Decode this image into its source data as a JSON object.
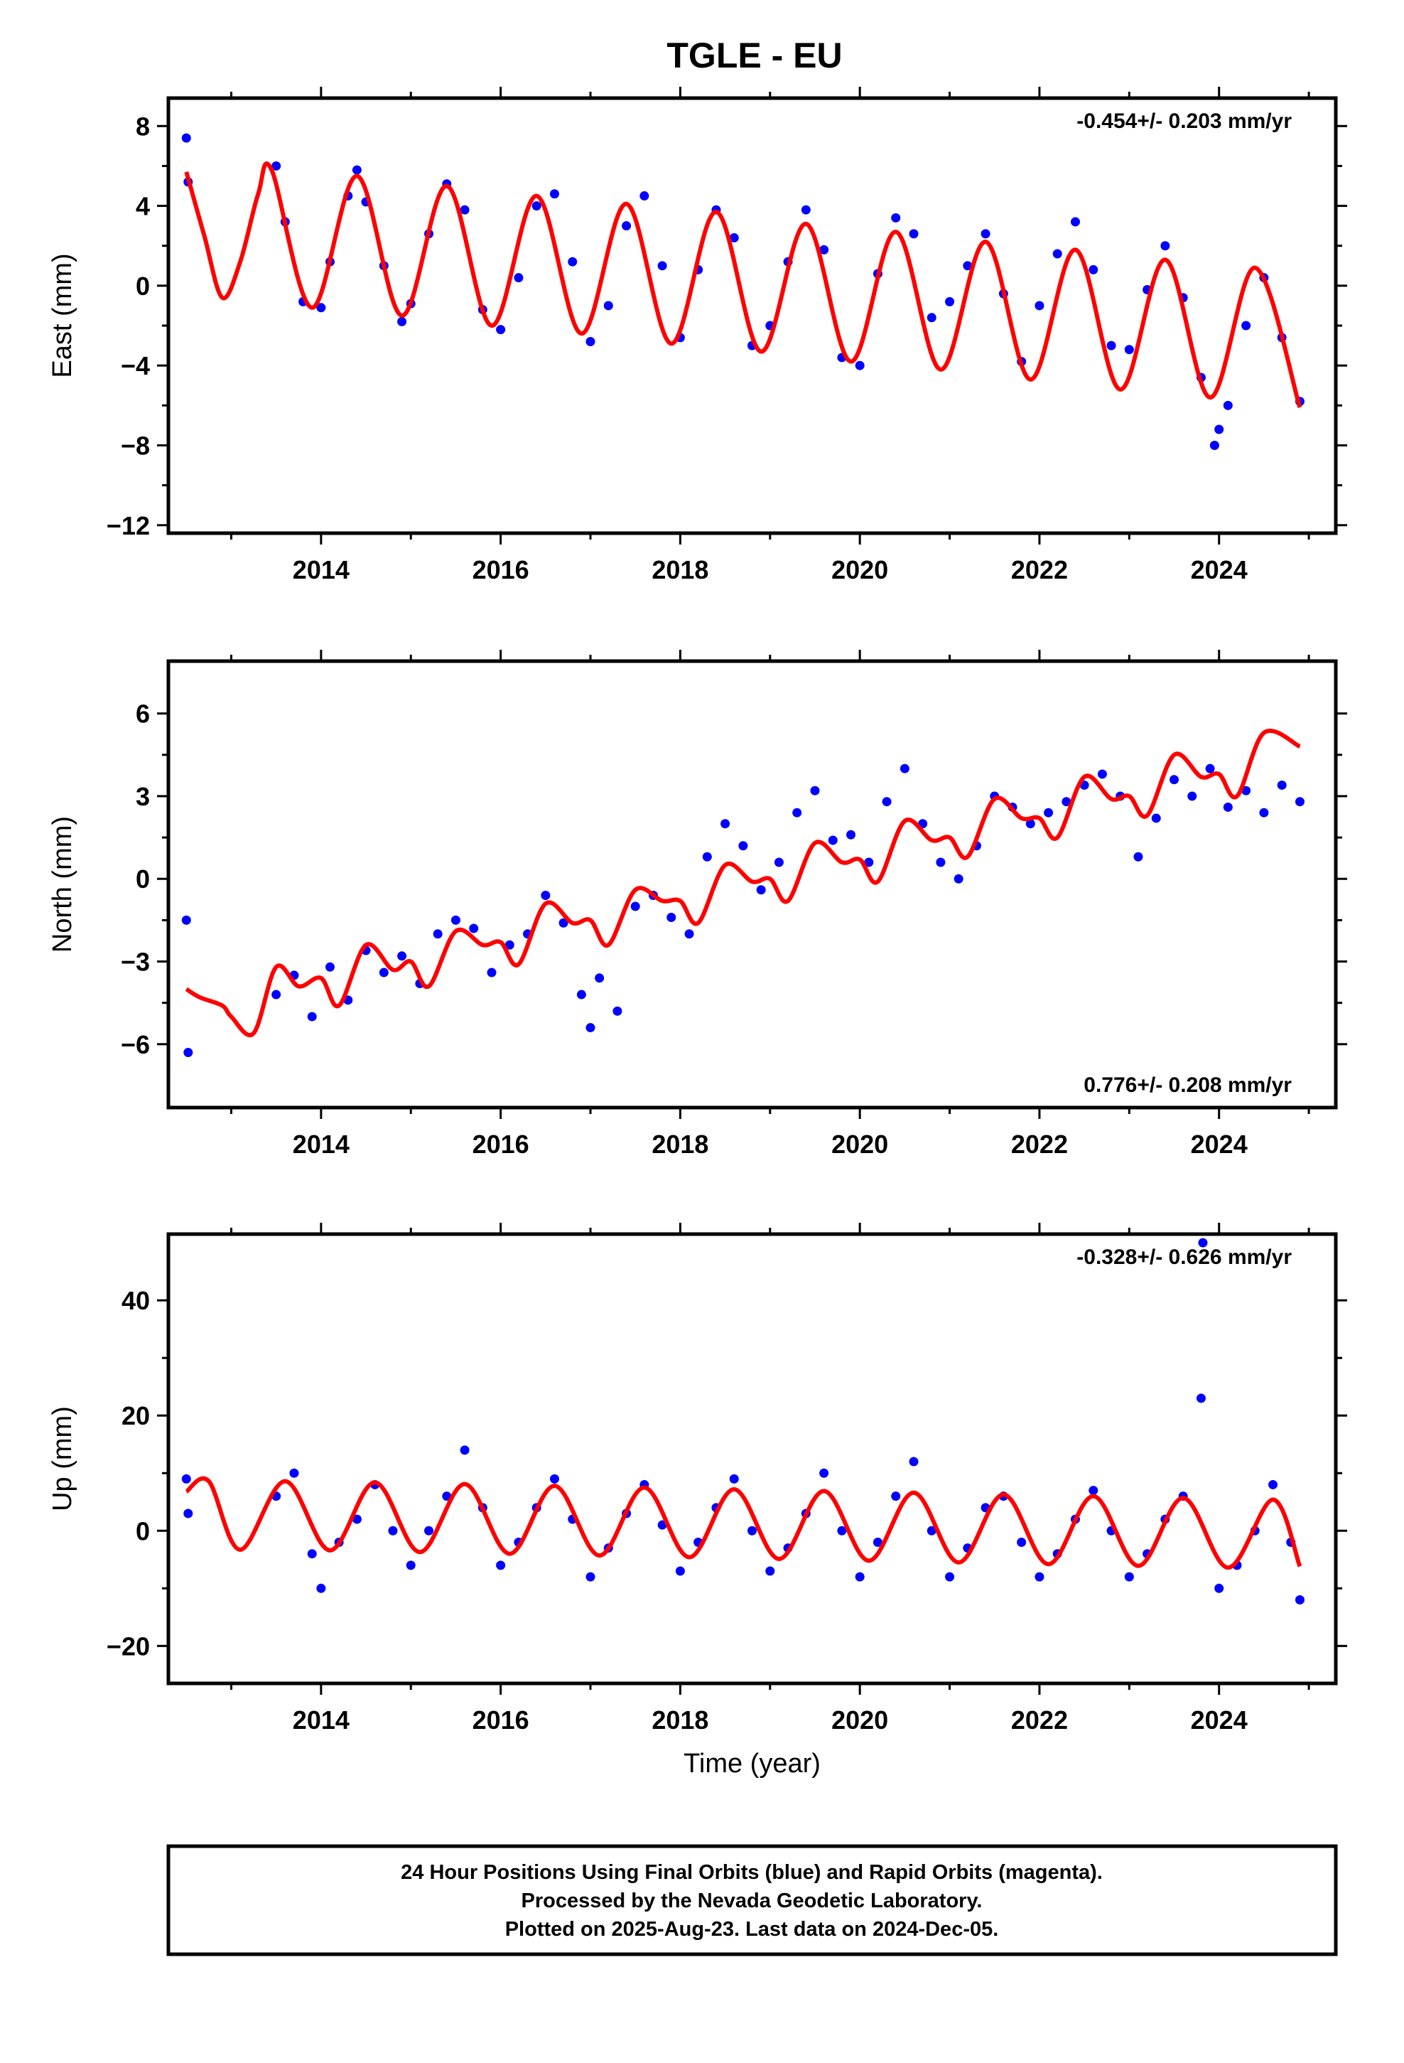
{
  "page_title": "TGLE - EU",
  "colors": {
    "points": "#0000ff",
    "fit": "#ff0000",
    "frame": "#000000",
    "background": "#ffffff"
  },
  "footer": {
    "line1": "24 Hour Positions Using Final Orbits (blue) and Rapid Orbits (magenta).",
    "line2": "Processed by the Nevada Geodetic Laboratory.",
    "line3": "Plotted on 2025-Aug-23. Last data on 2024-Dec-05."
  },
  "chart_data": [
    {
      "type": "scatter",
      "component": "east",
      "title": "",
      "xlabel": "",
      "ylabel": "East (mm)",
      "rate_label": "-0.454+/- 0.203 mm/yr",
      "rate_position": "top-right",
      "xlim": [
        2012.3,
        2025.3
      ],
      "ylim": [
        -12.4,
        9.4
      ],
      "x_ticks": [
        2014,
        2016,
        2018,
        2020,
        2022,
        2024
      ],
      "x_tick_labels": [
        "2014",
        "2016",
        "2018",
        "2020",
        "2022",
        "2024"
      ],
      "y_ticks": [
        -12,
        -8,
        -4,
        0,
        4,
        8
      ],
      "y_tick_labels": [
        "−12",
        "−8",
        "−4",
        "0",
        "4",
        "8"
      ],
      "grid": false,
      "series": [
        {
          "kind": "points",
          "x": [
            2012.5,
            2012.52,
            2013.5,
            2013.6,
            2013.8,
            2014.0,
            2014.1,
            2014.3,
            2014.4,
            2014.5,
            2014.7,
            2014.9,
            2015.0,
            2015.2,
            2015.4,
            2015.6,
            2015.8,
            2016.0,
            2016.2,
            2016.4,
            2016.6,
            2016.8,
            2017.0,
            2017.2,
            2017.4,
            2017.6,
            2017.8,
            2018.0,
            2018.2,
            2018.4,
            2018.6,
            2018.8,
            2019.0,
            2019.2,
            2019.4,
            2019.6,
            2019.8,
            2020.0,
            2020.2,
            2020.4,
            2020.6,
            2020.8,
            2021.0,
            2021.2,
            2021.4,
            2021.6,
            2021.8,
            2022.0,
            2022.2,
            2022.4,
            2022.6,
            2022.8,
            2023.0,
            2023.2,
            2023.4,
            2023.6,
            2023.8,
            2023.95,
            2024.0,
            2024.1,
            2024.3,
            2024.5,
            2024.7,
            2024.9
          ],
          "y": [
            7.4,
            5.2,
            6.0,
            3.2,
            -0.8,
            -1.1,
            1.2,
            4.5,
            5.8,
            4.2,
            1.0,
            -1.8,
            -0.9,
            2.6,
            5.1,
            3.8,
            -1.2,
            -2.2,
            0.4,
            4.0,
            4.6,
            1.2,
            -2.8,
            -1.0,
            3.0,
            4.5,
            1.0,
            -2.6,
            0.8,
            3.8,
            2.4,
            -3.0,
            -2.0,
            1.2,
            3.8,
            1.8,
            -3.6,
            -4.0,
            0.6,
            3.4,
            2.6,
            -1.6,
            -0.8,
            1.0,
            2.6,
            -0.4,
            -3.8,
            -1.0,
            1.6,
            3.2,
            0.8,
            -3.0,
            -3.2,
            -0.2,
            2.0,
            -0.6,
            -4.6,
            -8.0,
            -7.2,
            -6.0,
            -2.0,
            0.4,
            -2.6,
            -5.8
          ]
        },
        {
          "kind": "fit",
          "x": [
            2012.5,
            2012.7,
            2012.9,
            2013.1,
            2013.3,
            2013.45,
            2013.9,
            2014.4,
            2014.9,
            2015.4,
            2015.9,
            2016.4,
            2016.9,
            2017.4,
            2017.9,
            2018.4,
            2018.9,
            2019.4,
            2019.9,
            2020.4,
            2020.9,
            2021.4,
            2021.9,
            2022.4,
            2022.9,
            2023.4,
            2023.9,
            2024.4,
            2024.9
          ],
          "y": [
            5.7,
            2.5,
            -0.6,
            1.2,
            4.6,
            5.8,
            -1.1,
            5.5,
            -1.5,
            5.0,
            -2.0,
            4.5,
            -2.4,
            4.1,
            -2.9,
            3.7,
            -3.3,
            3.1,
            -3.8,
            2.7,
            -4.2,
            2.2,
            -4.7,
            1.8,
            -5.2,
            1.3,
            -5.6,
            0.9,
            -6.1
          ]
        }
      ]
    },
    {
      "type": "scatter",
      "component": "north",
      "title": "",
      "xlabel": "",
      "ylabel": "North (mm)",
      "rate_label": "0.776+/- 0.208 mm/yr",
      "rate_position": "bottom-right",
      "xlim": [
        2012.3,
        2025.3
      ],
      "ylim": [
        -8.3,
        7.9
      ],
      "x_ticks": [
        2014,
        2016,
        2018,
        2020,
        2022,
        2024
      ],
      "x_tick_labels": [
        "2014",
        "2016",
        "2018",
        "2020",
        "2022",
        "2024"
      ],
      "y_ticks": [
        -6,
        -3,
        0,
        3,
        6
      ],
      "y_tick_labels": [
        "−6",
        "−3",
        "0",
        "3",
        "6"
      ],
      "grid": false,
      "series": [
        {
          "kind": "points",
          "x": [
            2012.5,
            2012.52,
            2013.5,
            2013.7,
            2013.9,
            2014.1,
            2014.3,
            2014.5,
            2014.7,
            2014.9,
            2015.1,
            2015.3,
            2015.5,
            2015.7,
            2015.9,
            2016.1,
            2016.3,
            2016.5,
            2016.7,
            2016.9,
            2017.0,
            2017.1,
            2017.3,
            2017.5,
            2017.7,
            2017.9,
            2018.1,
            2018.3,
            2018.5,
            2018.7,
            2018.9,
            2019.1,
            2019.3,
            2019.5,
            2019.7,
            2019.9,
            2020.1,
            2020.3,
            2020.5,
            2020.7,
            2020.9,
            2021.1,
            2021.3,
            2021.5,
            2021.7,
            2021.9,
            2022.1,
            2022.3,
            2022.5,
            2022.7,
            2022.9,
            2023.1,
            2023.3,
            2023.5,
            2023.7,
            2023.9,
            2024.1,
            2024.3,
            2024.5,
            2024.7,
            2024.9
          ],
          "y": [
            -1.5,
            -6.3,
            -4.2,
            -3.5,
            -5.0,
            -3.2,
            -4.4,
            -2.6,
            -3.4,
            -2.8,
            -3.8,
            -2.0,
            -1.5,
            -1.8,
            -3.4,
            -2.4,
            -2.0,
            -0.6,
            -1.6,
            -4.2,
            -5.4,
            -3.6,
            -4.8,
            -1.0,
            -0.6,
            -1.4,
            -2.0,
            0.8,
            2.0,
            1.2,
            -0.4,
            0.6,
            2.4,
            3.2,
            1.4,
            1.6,
            0.6,
            2.8,
            4.0,
            2.0,
            0.6,
            0.0,
            1.2,
            3.0,
            2.6,
            2.0,
            2.4,
            2.8,
            3.4,
            3.8,
            3.0,
            0.8,
            2.2,
            3.6,
            3.0,
            4.0,
            2.6,
            3.2,
            2.4,
            3.4,
            2.8
          ]
        },
        {
          "kind": "fit",
          "x": [
            2012.5,
            2012.65,
            2012.9,
            2013.0,
            2013.25,
            2013.5,
            2013.75,
            2014.0,
            2014.2,
            2014.5,
            2014.8,
            2015.0,
            2015.2,
            2015.5,
            2015.8,
            2016.0,
            2016.2,
            2016.5,
            2016.8,
            2017.0,
            2017.2,
            2017.5,
            2017.8,
            2018.0,
            2018.2,
            2018.5,
            2018.8,
            2019.0,
            2019.2,
            2019.5,
            2019.8,
            2020.0,
            2020.2,
            2020.5,
            2020.8,
            2021.0,
            2021.2,
            2021.5,
            2021.8,
            2022.0,
            2022.2,
            2022.5,
            2022.8,
            2023.0,
            2023.2,
            2023.5,
            2023.8,
            2024.0,
            2024.2,
            2024.5,
            2024.9
          ],
          "y": [
            -4.0,
            -4.3,
            -4.6,
            -5.0,
            -5.6,
            -3.2,
            -3.9,
            -3.6,
            -4.6,
            -2.4,
            -3.3,
            -3.0,
            -3.9,
            -1.9,
            -2.4,
            -2.3,
            -3.1,
            -0.9,
            -1.6,
            -1.5,
            -2.4,
            -0.4,
            -0.8,
            -0.8,
            -1.6,
            0.5,
            -0.1,
            0.0,
            -0.8,
            1.3,
            0.6,
            0.7,
            -0.1,
            2.1,
            1.4,
            1.5,
            0.8,
            2.9,
            2.2,
            2.2,
            1.5,
            3.7,
            2.9,
            3.0,
            2.3,
            4.5,
            3.7,
            3.8,
            3.0,
            5.3,
            4.8
          ]
        }
      ]
    },
    {
      "type": "scatter",
      "component": "up",
      "title": "",
      "xlabel": "Time (year)",
      "ylabel": "Up (mm)",
      "rate_label": "-0.328+/- 0.626 mm/yr",
      "rate_position": "top-right",
      "xlim": [
        2012.3,
        2025.3
      ],
      "ylim": [
        -26.5,
        51.5
      ],
      "x_ticks": [
        2014,
        2016,
        2018,
        2020,
        2022,
        2024
      ],
      "x_tick_labels": [
        "2014",
        "2016",
        "2018",
        "2020",
        "2022",
        "2024"
      ],
      "y_ticks": [
        -20,
        0,
        20,
        40
      ],
      "y_tick_labels": [
        "−20",
        "0",
        "20",
        "40"
      ],
      "grid": false,
      "series": [
        {
          "kind": "points",
          "x": [
            2012.5,
            2012.52,
            2013.5,
            2013.7,
            2013.9,
            2014.0,
            2014.2,
            2014.4,
            2014.6,
            2014.8,
            2015.0,
            2015.2,
            2015.4,
            2015.6,
            2015.8,
            2016.0,
            2016.2,
            2016.4,
            2016.6,
            2016.8,
            2017.0,
            2017.2,
            2017.4,
            2017.6,
            2017.8,
            2018.0,
            2018.2,
            2018.4,
            2018.6,
            2018.8,
            2019.0,
            2019.2,
            2019.4,
            2019.6,
            2019.8,
            2020.0,
            2020.2,
            2020.4,
            2020.6,
            2020.8,
            2021.0,
            2021.2,
            2021.4,
            2021.6,
            2021.8,
            2022.0,
            2022.2,
            2022.4,
            2022.6,
            2022.8,
            2023.0,
            2023.2,
            2023.4,
            2023.6,
            2023.8,
            2023.82,
            2024.0,
            2024.2,
            2024.4,
            2024.6,
            2024.8,
            2024.9
          ],
          "y": [
            9,
            3,
            6,
            10,
            -4,
            -10,
            -2,
            2,
            8,
            0,
            -6,
            0,
            6,
            14,
            4,
            -6,
            -2,
            4,
            9,
            2,
            -8,
            -3,
            3,
            8,
            1,
            -7,
            -2,
            4,
            9,
            0,
            -7,
            -3,
            3,
            10,
            0,
            -8,
            -2,
            6,
            12,
            0,
            -8,
            -3,
            4,
            6,
            -2,
            -8,
            -4,
            2,
            7,
            0,
            -8,
            -4,
            2,
            6,
            23,
            50,
            -10,
            -6,
            0,
            8,
            -2,
            -12
          ]
        },
        {
          "kind": "fit",
          "x": [
            2012.5,
            2012.75,
            2013.1,
            2013.6,
            2014.1,
            2014.6,
            2015.1,
            2015.6,
            2016.1,
            2016.6,
            2017.1,
            2017.6,
            2018.1,
            2018.6,
            2019.1,
            2019.6,
            2020.1,
            2020.6,
            2021.1,
            2021.6,
            2022.1,
            2022.6,
            2023.1,
            2023.6,
            2024.1,
            2024.6,
            2024.9
          ],
          "y": [
            6.8,
            8.6,
            -3.3,
            8.6,
            -3.4,
            8.4,
            -3.7,
            8.1,
            -4.0,
            7.8,
            -4.3,
            7.5,
            -4.6,
            7.2,
            -4.9,
            6.9,
            -5.2,
            6.6,
            -5.5,
            6.3,
            -5.8,
            6.0,
            -6.1,
            5.7,
            -6.4,
            5.4,
            -6.2
          ]
        }
      ]
    }
  ]
}
